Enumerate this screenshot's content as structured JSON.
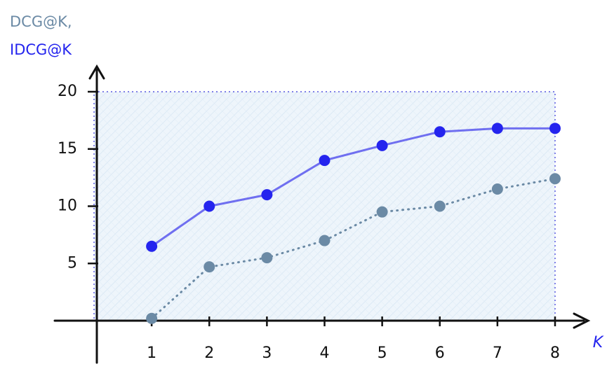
{
  "chart_data": {
    "type": "line",
    "xlabel": "K",
    "x": [
      1,
      2,
      3,
      4,
      5,
      6,
      7,
      8
    ],
    "series": [
      {
        "name": "DCG@K,",
        "color": "#6b8aa5",
        "style": "dotted",
        "values": [
          0.2,
          4.7,
          5.5,
          7,
          9.5,
          10,
          11.5,
          12.4
        ]
      },
      {
        "name": "IDCG@K",
        "color": "#2424ee",
        "style": "solid",
        "values": [
          6.5,
          10,
          11,
          14,
          15.3,
          16.5,
          16.8,
          16.8
        ]
      }
    ],
    "xlim": [
      0,
      8
    ],
    "xticks": [
      1,
      2,
      3,
      4,
      5,
      6,
      7,
      8
    ],
    "ylim": [
      0,
      20
    ],
    "yticks": [
      5,
      10,
      15,
      20
    ]
  }
}
